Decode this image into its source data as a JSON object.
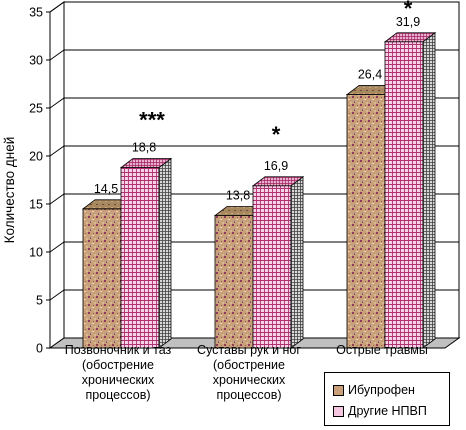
{
  "chart_data": {
    "type": "bar",
    "title": "",
    "xlabel": "",
    "ylabel": "Количество дней",
    "ylim": [
      0,
      35
    ],
    "yticks": [
      "0",
      "5",
      "10",
      "15",
      "20",
      "25",
      "30",
      "35"
    ],
    "grid": true,
    "legend_position": "bottom-right",
    "categories": [
      "Позвоночник и таз (обострение хронических процессов)",
      "Суставы рук и ног (обострение хронических процессов)",
      "Острые травмы"
    ],
    "series": [
      {
        "name": "Ибупрофен",
        "values": [
          14.5,
          13.8,
          26.4
        ],
        "labels": [
          "14,5",
          "13,8",
          "26,4"
        ]
      },
      {
        "name": "Другие НПВП",
        "values": [
          18.8,
          16.9,
          31.9
        ],
        "labels": [
          "18,8",
          "16,9",
          "31,9"
        ]
      }
    ],
    "annotations": [
      "***",
      "*",
      "*"
    ]
  },
  "colors": {
    "ibuprofen": "#c9a07a",
    "other_nsaid": "#f4c6df",
    "floor": "#c0c0c0",
    "grid": "#000000"
  }
}
